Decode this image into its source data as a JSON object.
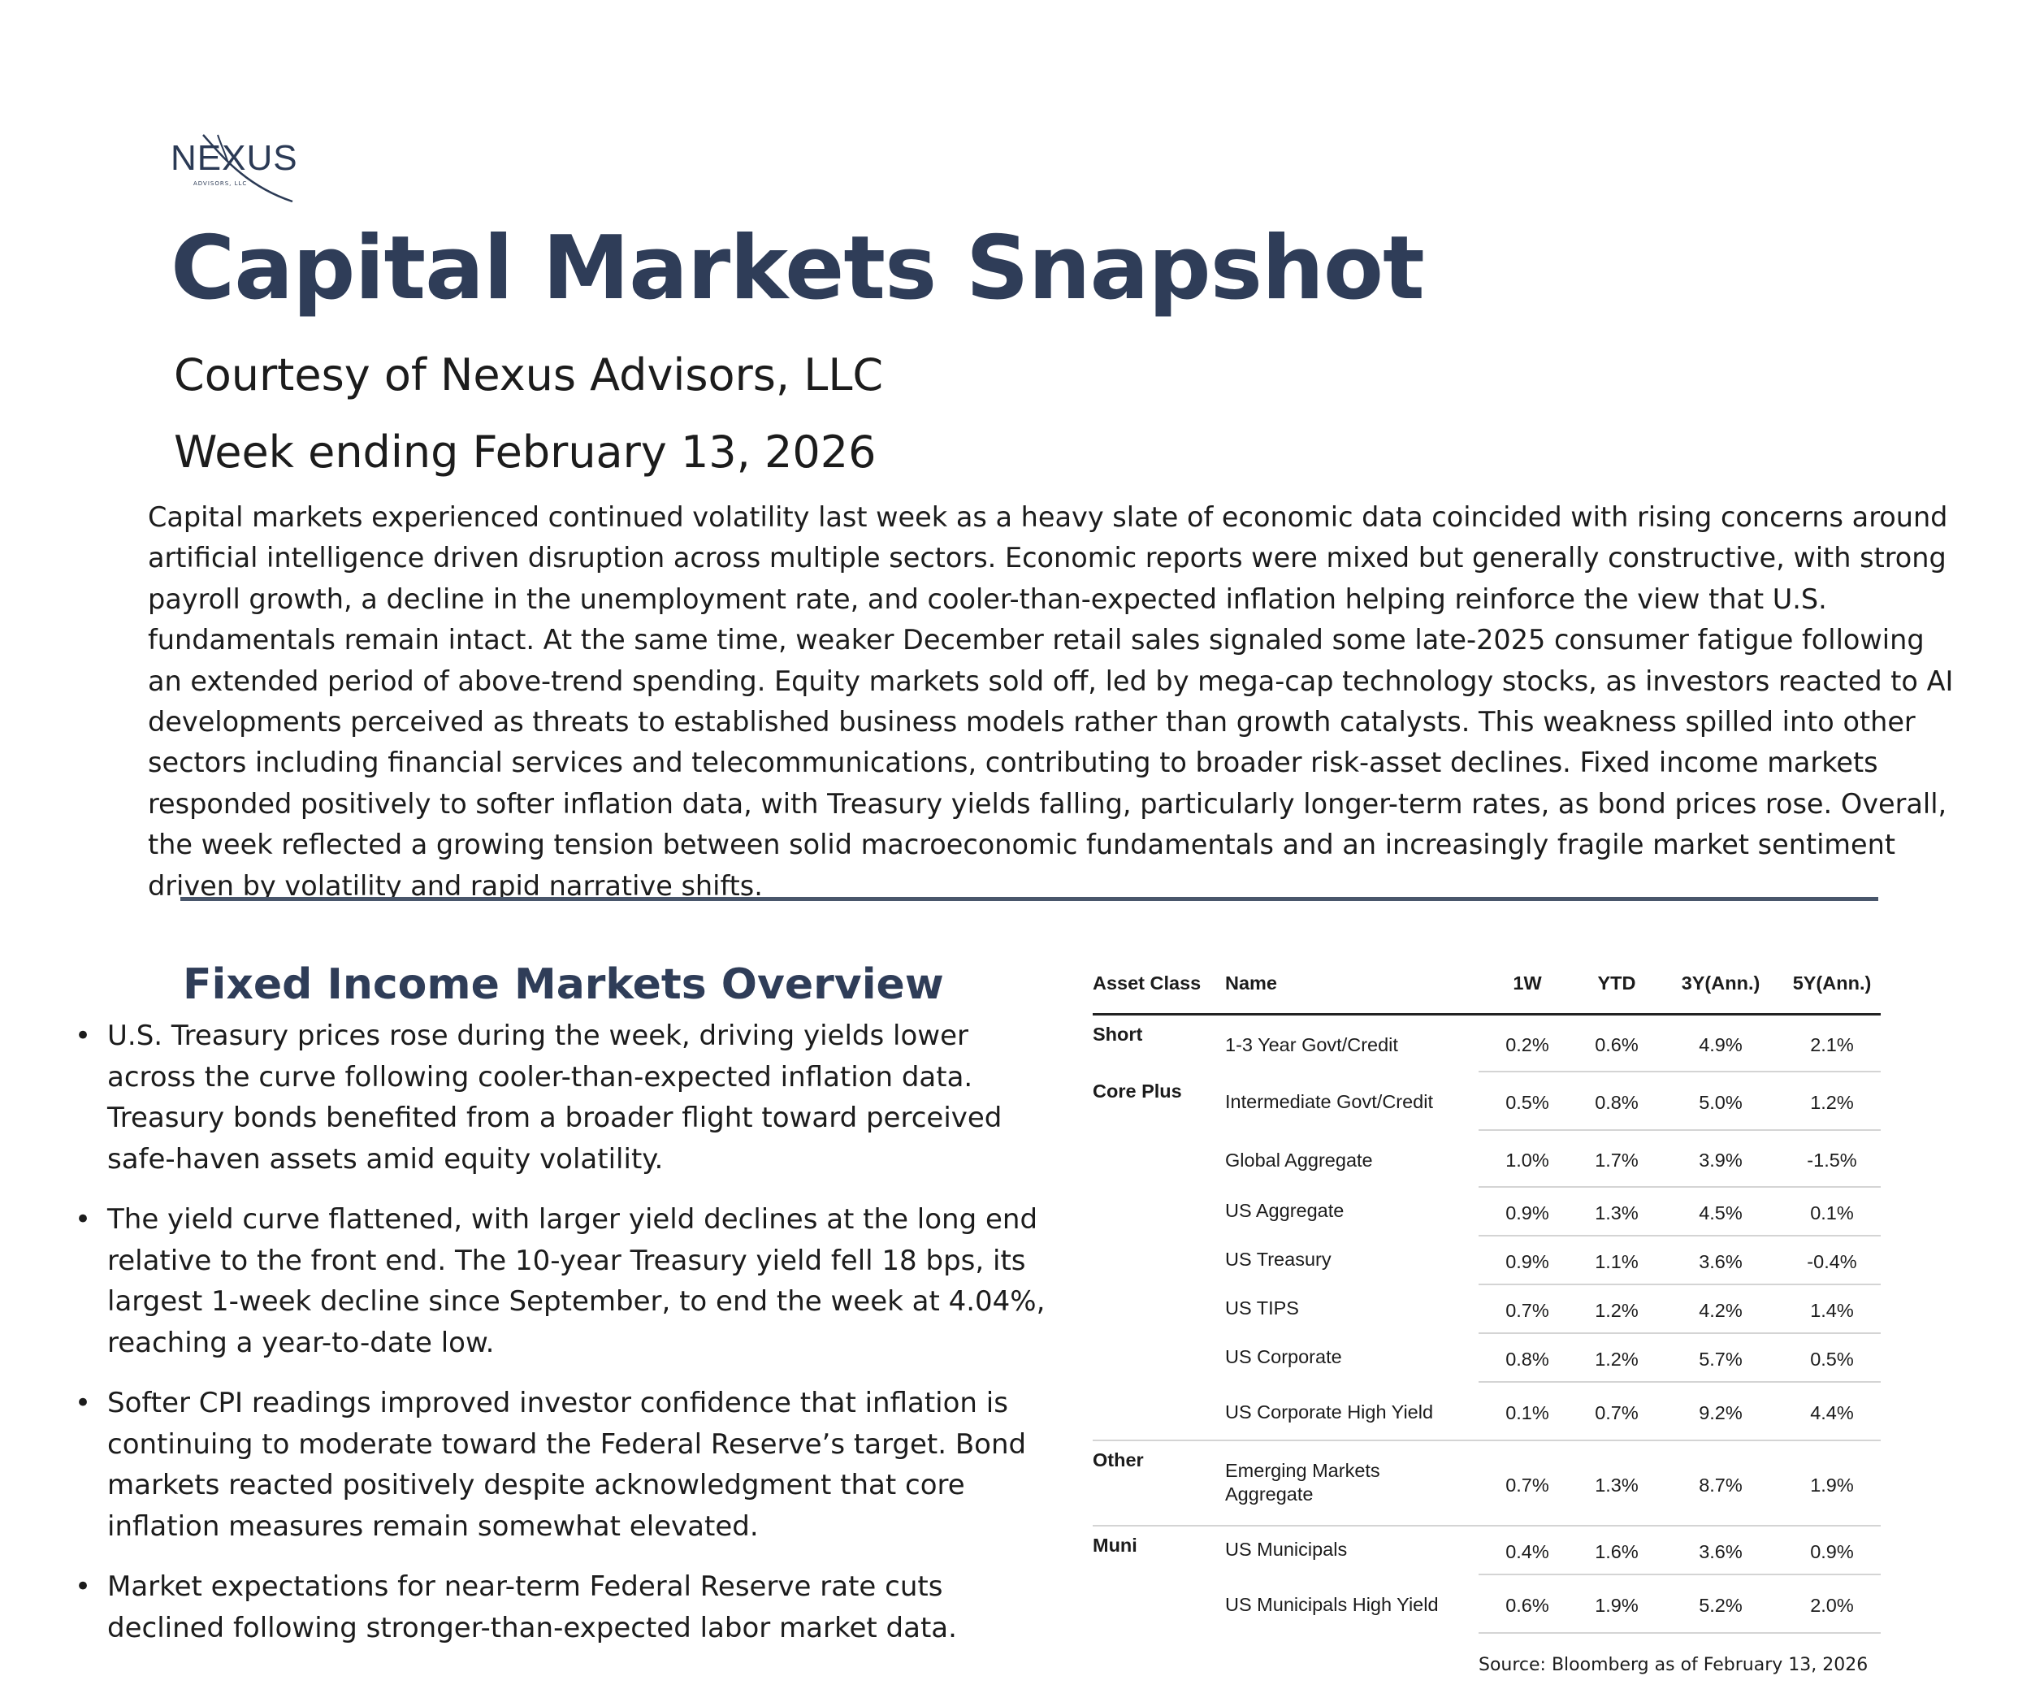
{
  "logo": {
    "name": "NEXUS",
    "tagline": "ADVISORS, LLC"
  },
  "header": {
    "title": "Capital Markets Snapshot",
    "courtesy": "Courtesy of Nexus Advisors, LLC",
    "week": "Week ending February 13, 2026"
  },
  "intro": "Capital markets experienced continued volatility last week as a heavy slate of economic data coincided with rising concerns around artificial intelligence driven disruption across multiple sectors. Economic reports were mixed but generally constructive, with strong payroll growth, a decline in the unemployment rate, and cooler-than-expected inflation helping reinforce the view that U.S. fundamentals remain intact. At the same time, weaker December retail sales signaled some late-2025 consumer fatigue following an extended period of above-trend spending. Equity markets sold off, led by mega-cap technology stocks, as investors reacted to AI developments perceived as threats to established business models rather than growth catalysts. This weakness spilled into other sectors including financial services and telecommunications, contributing to broader risk-asset declines. Fixed income markets responded positively to softer inflation data, with Treasury yields falling, particularly longer-term rates, as bond prices rose. Overall, the week reflected a growing tension between solid macroeconomic fundamentals and an increasingly fragile market sentiment driven by volatility and rapid narrative shifts.",
  "fixed_income": {
    "title": "Fixed Income Markets Overview",
    "bullets": [
      "U.S. Treasury prices rose during the week, driving yields lower across the curve following cooler-than-expected inflation data. Treasury bonds benefited from a broader flight toward perceived safe-haven assets amid equity volatility.",
      "The yield curve flattened, with larger yield declines at the long end relative to the front end. The 10-year Treasury yield fell 18 bps, its largest 1-week decline since September, to end the week at 4.04%, reaching a year-to-date low.",
      "Softer CPI readings improved investor confidence that inflation is continuing to moderate toward the Federal Reserve’s target. Bond markets reacted positively despite acknowledgment that core inflation measures remain somewhat elevated.",
      "Market expectations for near-term Federal Reserve rate cuts declined following stronger-than-expected labor market data."
    ]
  },
  "table": {
    "headers": {
      "asset_class": "Asset Class",
      "name": "Name",
      "w1": "1W",
      "ytd": "YTD",
      "y3": "3Y(Ann.)",
      "y5": "5Y(Ann.)"
    },
    "rows": [
      {
        "asset_class": "Short",
        "name": "1-3 Year Govt/Credit",
        "w1": "0.2%",
        "ytd": "0.6%",
        "y3": "4.9%",
        "y5": "2.1%"
      },
      {
        "asset_class": "Core Plus",
        "name": "Intermediate Govt/Credit",
        "w1": "0.5%",
        "ytd": "0.8%",
        "y3": "5.0%",
        "y5": "1.2%"
      },
      {
        "asset_class": "",
        "name": "Global Aggregate",
        "w1": "1.0%",
        "ytd": "1.7%",
        "y3": "3.9%",
        "y5": "-1.5%"
      },
      {
        "asset_class": "",
        "name": "US Aggregate",
        "w1": "0.9%",
        "ytd": "1.3%",
        "y3": "4.5%",
        "y5": "0.1%"
      },
      {
        "asset_class": "",
        "name": "US Treasury",
        "w1": "0.9%",
        "ytd": "1.1%",
        "y3": "3.6%",
        "y5": "-0.4%"
      },
      {
        "asset_class": "",
        "name": "US TIPS",
        "w1": "0.7%",
        "ytd": "1.2%",
        "y3": "4.2%",
        "y5": "1.4%"
      },
      {
        "asset_class": "",
        "name": "US Corporate",
        "w1": "0.8%",
        "ytd": "1.2%",
        "y3": "5.7%",
        "y5": "0.5%"
      },
      {
        "asset_class": "",
        "name": "US Corporate High Yield",
        "w1": "0.1%",
        "ytd": "0.7%",
        "y3": "9.2%",
        "y5": "4.4%"
      },
      {
        "asset_class": "Other",
        "name": "Emerging Markets Aggregate",
        "w1": "0.7%",
        "ytd": "1.3%",
        "y3": "8.7%",
        "y5": "1.9%"
      },
      {
        "asset_class": "Muni",
        "name": "US Municipals",
        "w1": "0.4%",
        "ytd": "1.6%",
        "y3": "3.6%",
        "y5": "0.9%"
      },
      {
        "asset_class": "",
        "name": "US Municipals High Yield",
        "w1": "0.6%",
        "ytd": "1.9%",
        "y3": "5.2%",
        "y5": "2.0%"
      }
    ],
    "source": "Source: Bloomberg as of February 13, 2026"
  }
}
